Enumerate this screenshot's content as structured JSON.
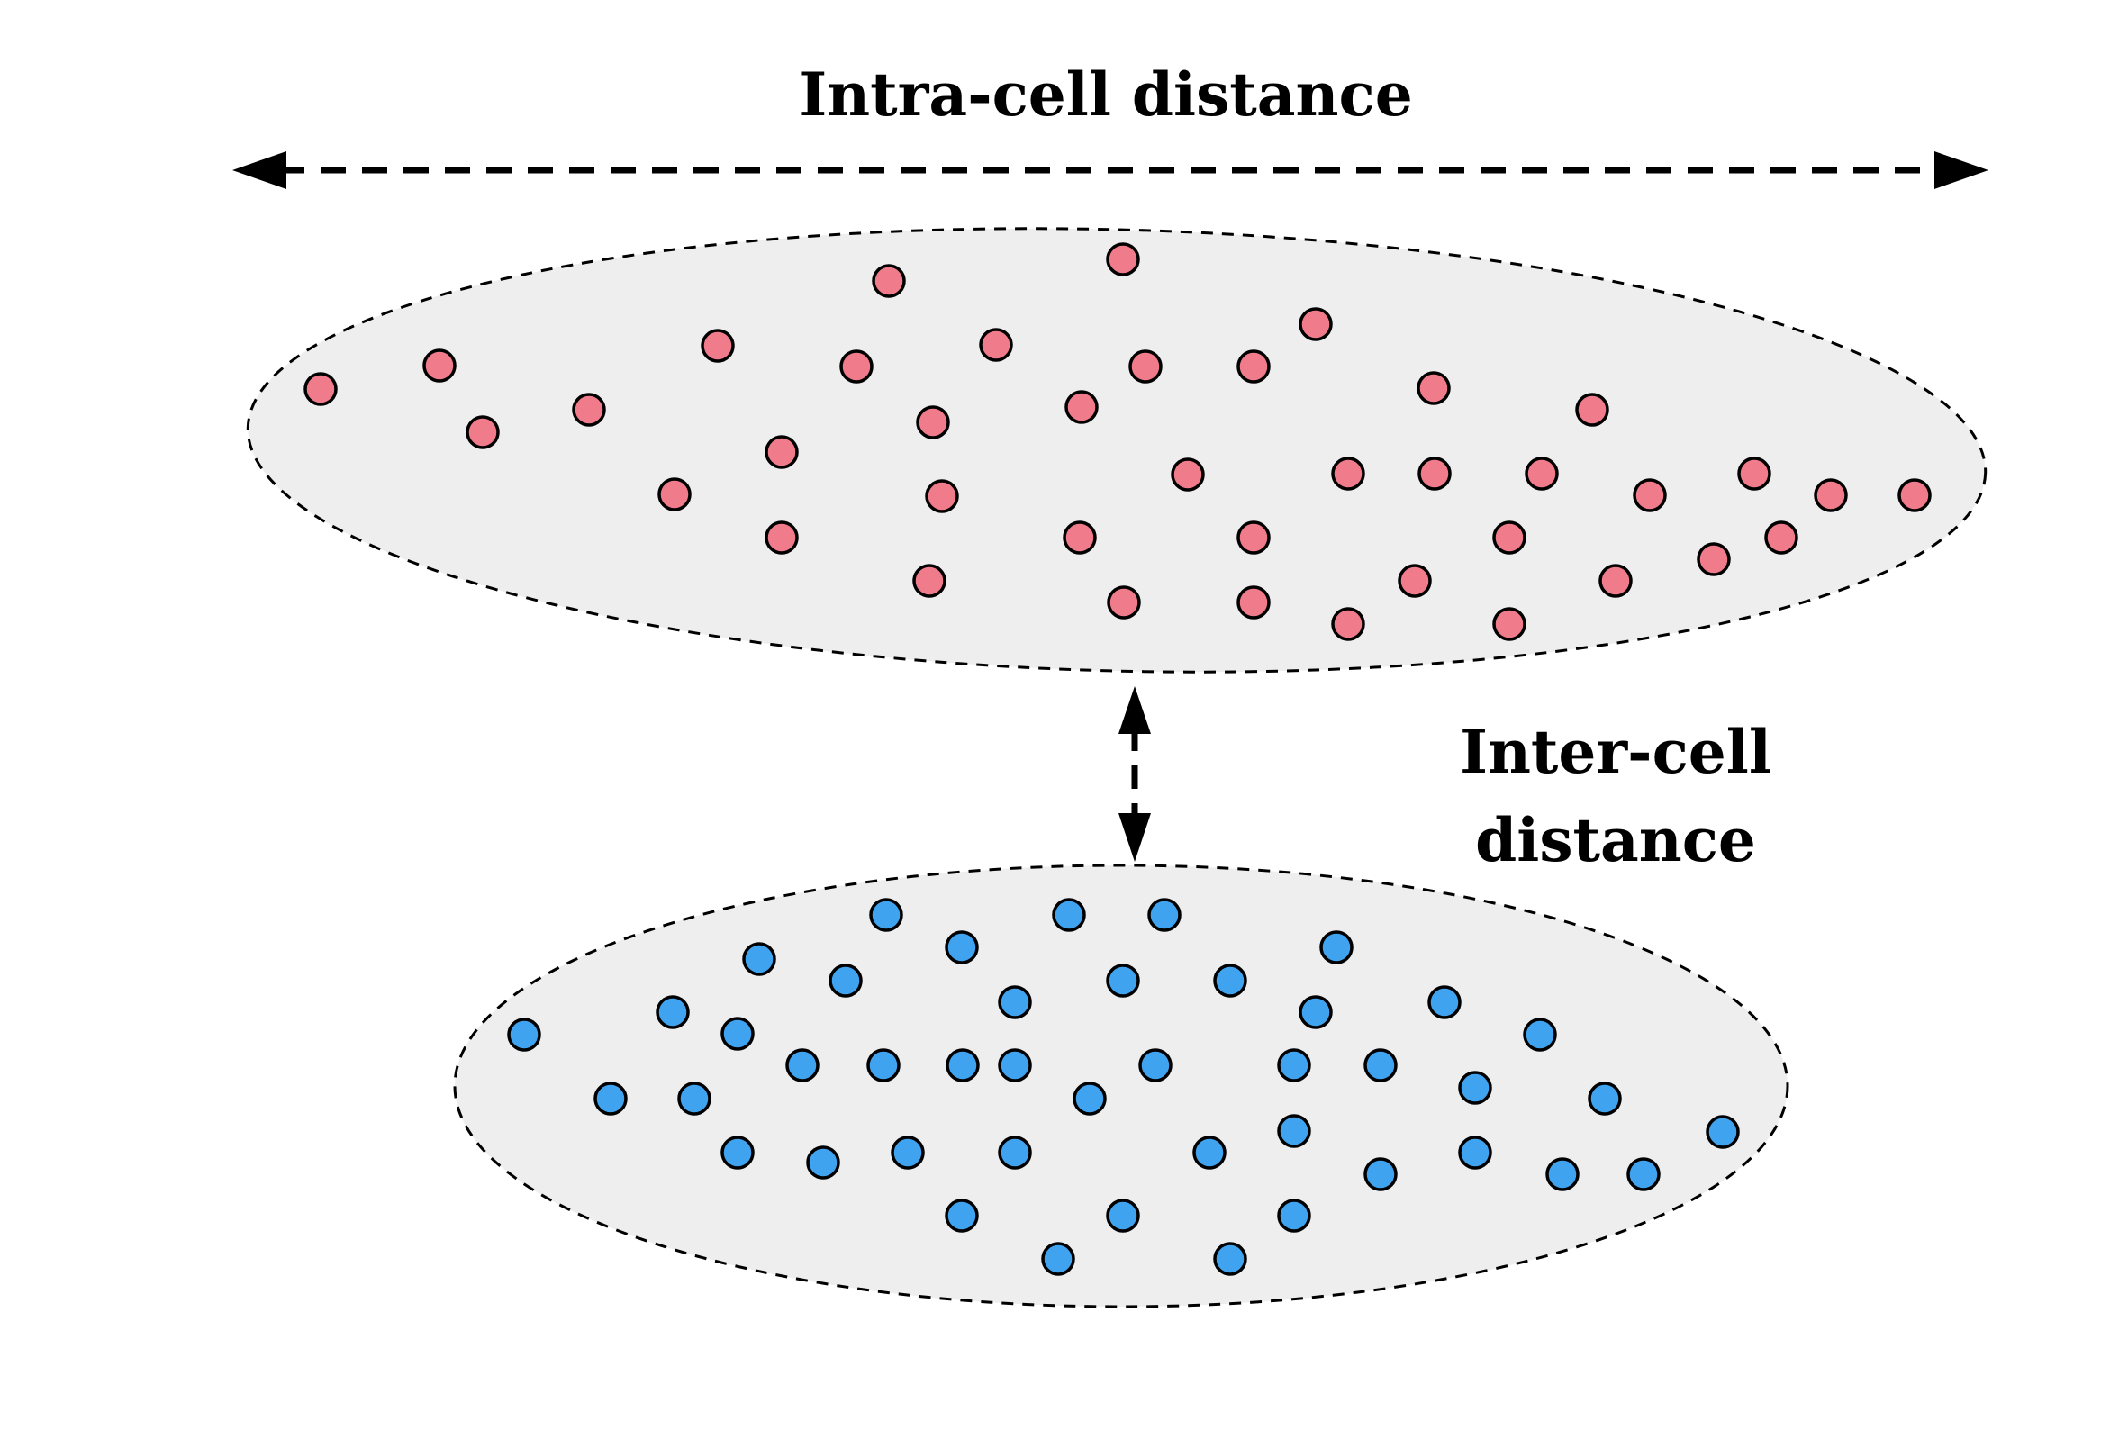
{
  "labels": {
    "intra": "Intra-cell distance",
    "inter_line1": "Inter-cell",
    "inter_line2": "distance"
  },
  "colors": {
    "cluster_a_points": "#f07b8a",
    "cluster_b_points": "#3fa3f0",
    "cluster_fill": "#eeeeee",
    "stroke": "#000000"
  },
  "clusters": [
    {
      "name": "red-cluster",
      "point_count": 44
    },
    {
      "name": "blue-cluster",
      "point_count": 50
    }
  ]
}
